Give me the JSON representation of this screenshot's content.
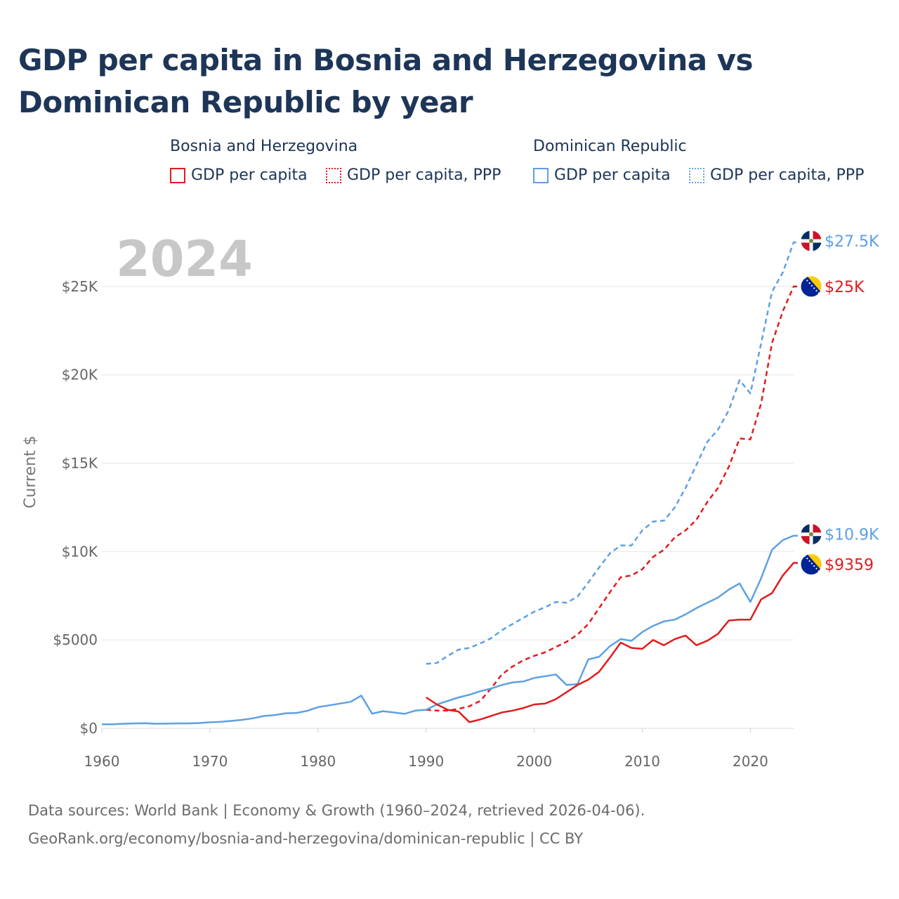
{
  "page": {
    "title": "GDP per capita in Bosnia and Herzegovina vs Dominican Republic by year",
    "footer_line1": "Data sources: World Bank | Economy & Growth (1960–2024, retrieved 2026-04-06).",
    "footer_line2": "GeoRank.org/economy/bosnia-and-herzegovina/dominican-republic | CC BY"
  },
  "legend": {
    "groups": [
      {
        "name": "Bosnia and Herzegovina",
        "items": [
          "GDP per capita",
          "GDP per capita, PPP"
        ],
        "color": "#e41a1c"
      },
      {
        "name": "Dominican Republic",
        "items": [
          "GDP per capita",
          "GDP per capita, PPP"
        ],
        "color": "#5ea0e3"
      }
    ]
  },
  "colors": {
    "bosnia": "#e41a1c",
    "dominican": "#5ea0e3",
    "grid": "#e6e6e6",
    "year_watermark": "#c7c7c7"
  },
  "chart_data": {
    "type": "line",
    "title": "GDP per capita in Bosnia and Herzegovina vs Dominican Republic by year",
    "year_watermark": "2024",
    "xlabel": "",
    "ylabel": "Current $",
    "xlim": [
      1960,
      2024
    ],
    "ylim": [
      0,
      27500
    ],
    "x_ticks": [
      1960,
      1970,
      1980,
      1990,
      2000,
      2010,
      2020
    ],
    "x_tick_labels": [
      "1960",
      "1970",
      "1980",
      "1990",
      "2000",
      "2010",
      "2020"
    ],
    "y_ticks": [
      0,
      5000,
      10000,
      15000,
      20000,
      25000
    ],
    "y_tick_labels": [
      "$0",
      "$5000",
      "$10K",
      "$15K",
      "$20K",
      "$25K"
    ],
    "grid": true,
    "series": [
      {
        "name": "Dominican Republic GDP per capita, PPP",
        "country": "dominican",
        "dashed": true,
        "end_label": "$27.5K",
        "x": [
          1990,
          1991,
          1992,
          1993,
          1994,
          1995,
          1996,
          1997,
          1998,
          1999,
          2000,
          2001,
          2002,
          2003,
          2004,
          2005,
          2006,
          2007,
          2008,
          2009,
          2010,
          2011,
          2012,
          2013,
          2014,
          2015,
          2016,
          2017,
          2018,
          2019,
          2020,
          2021,
          2022,
          2023,
          2024
        ],
        "values": [
          3650,
          3700,
          4100,
          4450,
          4550,
          4800,
          5100,
          5550,
          5900,
          6250,
          6600,
          6850,
          7150,
          7100,
          7450,
          8250,
          9100,
          9900,
          10350,
          10350,
          11200,
          11700,
          11750,
          12500,
          13600,
          14900,
          16200,
          16900,
          18000,
          19700,
          18950,
          21800,
          24700,
          25800,
          27500
        ]
      },
      {
        "name": "Bosnia and Herzegovina GDP per capita, PPP",
        "country": "bosnia",
        "dashed": true,
        "end_label": "$25K",
        "x": [
          1990,
          1991,
          1992,
          1993,
          1994,
          1995,
          1996,
          1997,
          1998,
          1999,
          2000,
          2001,
          2002,
          2003,
          2004,
          2005,
          2006,
          2007,
          2008,
          2009,
          2010,
          2011,
          2012,
          2013,
          2014,
          2015,
          2016,
          2017,
          2018,
          2019,
          2020,
          2021,
          2022,
          2023,
          2024
        ],
        "values": [
          1050,
          1000,
          1000,
          1100,
          1250,
          1550,
          2250,
          3050,
          3500,
          3850,
          4100,
          4300,
          4600,
          4900,
          5300,
          5900,
          6800,
          7700,
          8550,
          8650,
          9000,
          9700,
          10100,
          10800,
          11200,
          11800,
          12800,
          13600,
          14800,
          16400,
          16350,
          18400,
          21800,
          23600,
          25000
        ]
      },
      {
        "name": "Dominican Republic GDP per capita",
        "country": "dominican",
        "dashed": false,
        "end_label": "$10.9K",
        "x": [
          1960,
          1961,
          1962,
          1963,
          1964,
          1965,
          1966,
          1967,
          1968,
          1969,
          1970,
          1971,
          1972,
          1973,
          1974,
          1975,
          1976,
          1977,
          1978,
          1979,
          1980,
          1981,
          1982,
          1983,
          1984,
          1985,
          1986,
          1987,
          1988,
          1989,
          1990,
          1991,
          1992,
          1993,
          1994,
          1995,
          1996,
          1997,
          1998,
          1999,
          2000,
          2001,
          2002,
          2003,
          2004,
          2005,
          2006,
          2007,
          2008,
          2009,
          2010,
          2011,
          2012,
          2013,
          2014,
          2015,
          2016,
          2017,
          2018,
          2019,
          2020,
          2021,
          2022,
          2023,
          2024
        ],
        "values": [
          230,
          230,
          260,
          280,
          290,
          260,
          270,
          280,
          280,
          300,
          340,
          370,
          420,
          480,
          570,
          700,
          750,
          850,
          870,
          990,
          1200,
          1300,
          1400,
          1500,
          1850,
          830,
          970,
          900,
          820,
          1000,
          1050,
          1350,
          1550,
          1750,
          1900,
          2100,
          2250,
          2450,
          2600,
          2650,
          2850,
          2950,
          3050,
          2450,
          2500,
          3900,
          4050,
          4650,
          5050,
          4950,
          5450,
          5800,
          6050,
          6150,
          6450,
          6800,
          7100,
          7400,
          7850,
          8200,
          7150,
          8500,
          10100,
          10650,
          10900
        ]
      },
      {
        "name": "Bosnia and Herzegovina GDP per capita",
        "country": "bosnia",
        "dashed": false,
        "end_label": "$9359",
        "x": [
          1990,
          1991,
          1992,
          1993,
          1994,
          1995,
          1996,
          1997,
          1998,
          1999,
          2000,
          2001,
          2002,
          2003,
          2004,
          2005,
          2006,
          2007,
          2008,
          2009,
          2010,
          2011,
          2012,
          2013,
          2014,
          2015,
          2016,
          2017,
          2018,
          2019,
          2020,
          2021,
          2022,
          2023,
          2024
        ],
        "values": [
          1750,
          1350,
          1050,
          950,
          350,
          500,
          700,
          900,
          1000,
          1150,
          1350,
          1400,
          1650,
          2050,
          2450,
          2750,
          3200,
          4000,
          4850,
          4550,
          4500,
          5000,
          4700,
          5050,
          5250,
          4700,
          4950,
          5350,
          6100,
          6150,
          6150,
          7300,
          7650,
          8650,
          9359
        ]
      }
    ]
  }
}
